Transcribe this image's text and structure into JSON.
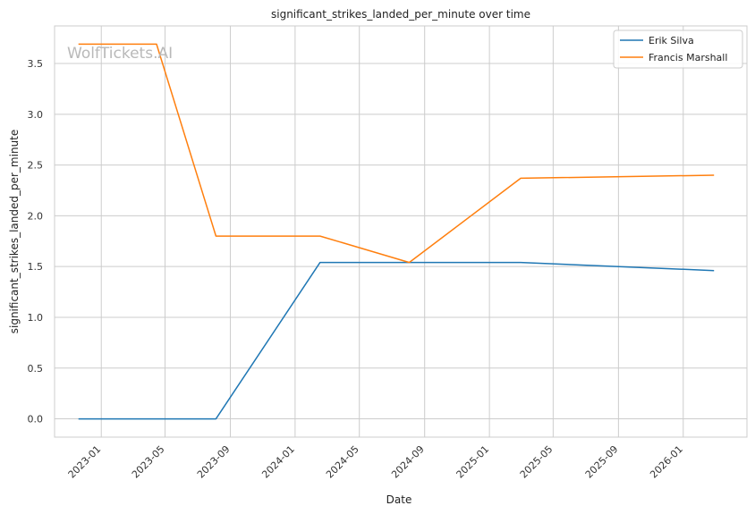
{
  "watermark": "WolfTickets.AI",
  "colors": {
    "grid": "#cccccc",
    "frame": "#cccccc",
    "background": "#ffffff"
  },
  "chart_data": {
    "type": "line",
    "title": "significant_strikes_landed_per_minute over time",
    "xlabel": "Date",
    "ylabel": "significant_strikes_landed_per_minute",
    "x_axis_type": "date",
    "xlim": [
      "2022-10-05",
      "2026-05-01"
    ],
    "ylim": [
      -0.18,
      3.87
    ],
    "xticks": [
      {
        "date": "2023-01-01",
        "label": "2023-01"
      },
      {
        "date": "2023-05-01",
        "label": "2023-05"
      },
      {
        "date": "2023-09-01",
        "label": "2023-09"
      },
      {
        "date": "2024-01-01",
        "label": "2024-01"
      },
      {
        "date": "2024-05-01",
        "label": "2024-05"
      },
      {
        "date": "2024-09-01",
        "label": "2024-09"
      },
      {
        "date": "2025-01-01",
        "label": "2025-01"
      },
      {
        "date": "2025-05-01",
        "label": "2025-05"
      },
      {
        "date": "2025-09-01",
        "label": "2025-09"
      },
      {
        "date": "2026-01-01",
        "label": "2026-01"
      }
    ],
    "yticks": [
      {
        "value": 0.0,
        "label": "0.0"
      },
      {
        "value": 0.5,
        "label": "0.5"
      },
      {
        "value": 1.0,
        "label": "1.0"
      },
      {
        "value": 1.5,
        "label": "1.5"
      },
      {
        "value": 2.0,
        "label": "2.0"
      },
      {
        "value": 2.5,
        "label": "2.5"
      },
      {
        "value": 3.0,
        "label": "3.0"
      },
      {
        "value": 3.5,
        "label": "3.5"
      }
    ],
    "grid": true,
    "legend_position": "top-right",
    "series": [
      {
        "name": "Erik Silva",
        "color": "#1f77b4",
        "x": [
          "2022-11-19",
          "2023-08-05",
          "2024-02-17",
          "2024-08-03",
          "2025-03-01",
          "2026-02-28"
        ],
        "y": [
          0.0,
          0.0,
          1.54,
          1.54,
          1.54,
          1.46
        ]
      },
      {
        "name": "Francis Marshall",
        "color": "#ff7f0e",
        "x": [
          "2022-11-19",
          "2023-04-15",
          "2023-08-05",
          "2024-02-17",
          "2024-08-03",
          "2025-03-01",
          "2026-02-28"
        ],
        "y": [
          3.69,
          3.69,
          1.8,
          1.8,
          1.54,
          2.37,
          2.4
        ]
      }
    ]
  }
}
